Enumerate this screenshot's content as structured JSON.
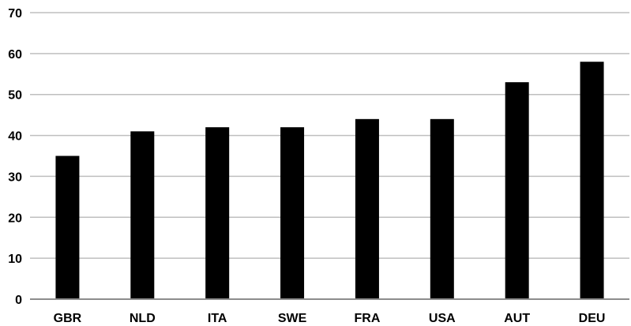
{
  "chart_data": {
    "type": "bar",
    "title": "",
    "xlabel": "",
    "ylabel": "",
    "categories": [
      "GBR",
      "NLD",
      "ITA",
      "SWE",
      "FRA",
      "USA",
      "AUT",
      "DEU"
    ],
    "values": [
      35,
      41,
      42,
      42,
      44,
      44,
      53,
      58
    ],
    "ylim": [
      0,
      70
    ],
    "yticks": [
      0,
      10,
      20,
      30,
      40,
      50,
      60,
      70
    ],
    "ytick_labels": [
      "0",
      "10",
      "20",
      "30",
      "40",
      "50",
      "60",
      "70"
    ],
    "grid": true,
    "legend": "none",
    "colors": {
      "bar": "#000000",
      "grid": "#bfbfbf",
      "axis": "#8c8c8c",
      "text": "#000000"
    }
  }
}
